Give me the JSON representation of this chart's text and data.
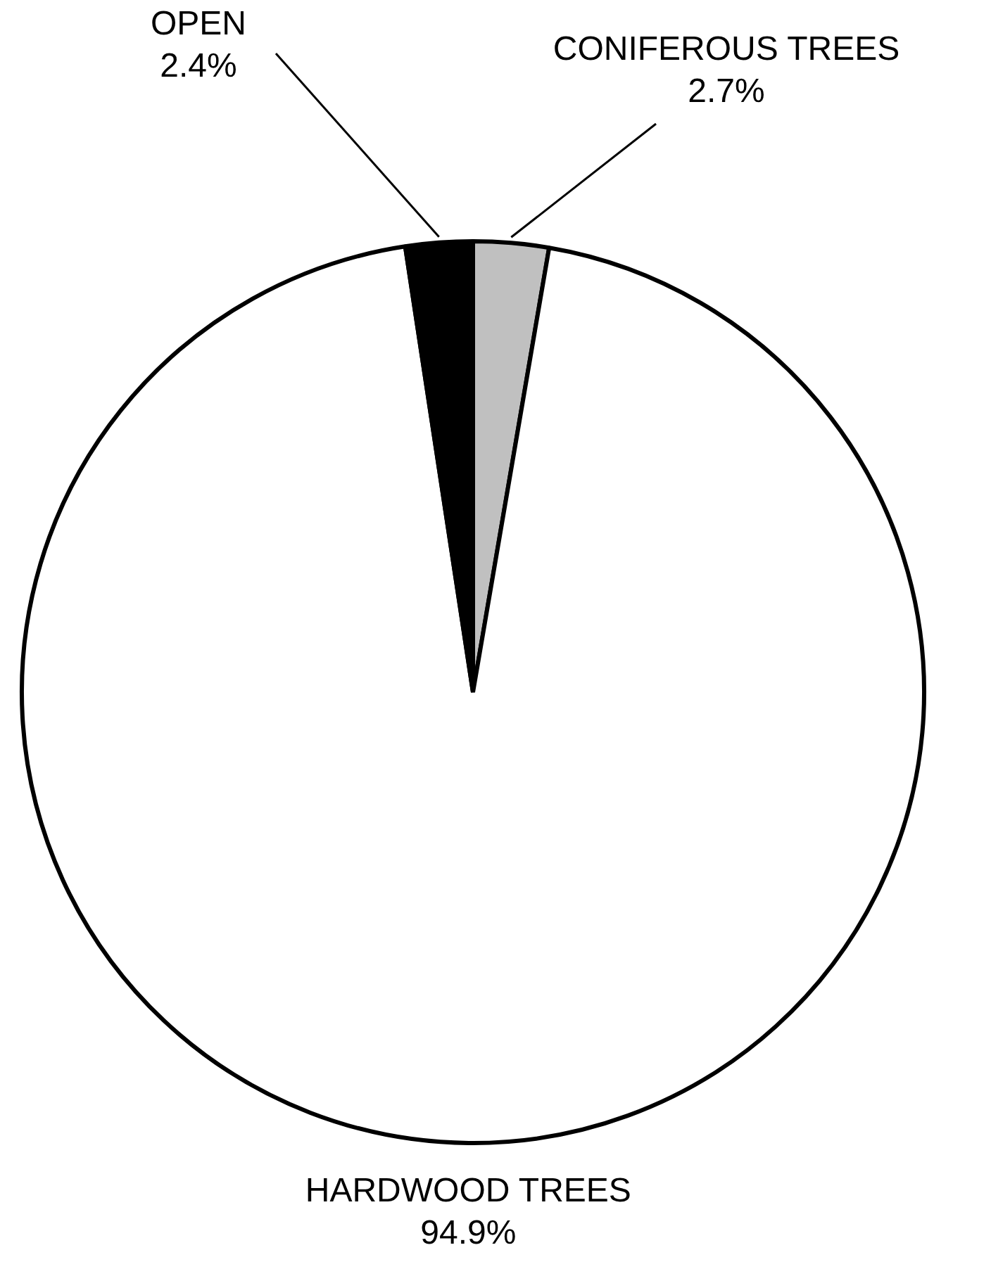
{
  "chart_data": {
    "type": "pie",
    "categories": [
      "CONIFEROUS TREES",
      "HARDWOOD TREES",
      "OPEN"
    ],
    "values": [
      2.7,
      94.9,
      2.4
    ],
    "colors": [
      "#c0c0c0",
      "#ffffff",
      "#000000"
    ],
    "value_labels": [
      "2.7%",
      "94.9%",
      "2.4%"
    ],
    "legend": false
  }
}
